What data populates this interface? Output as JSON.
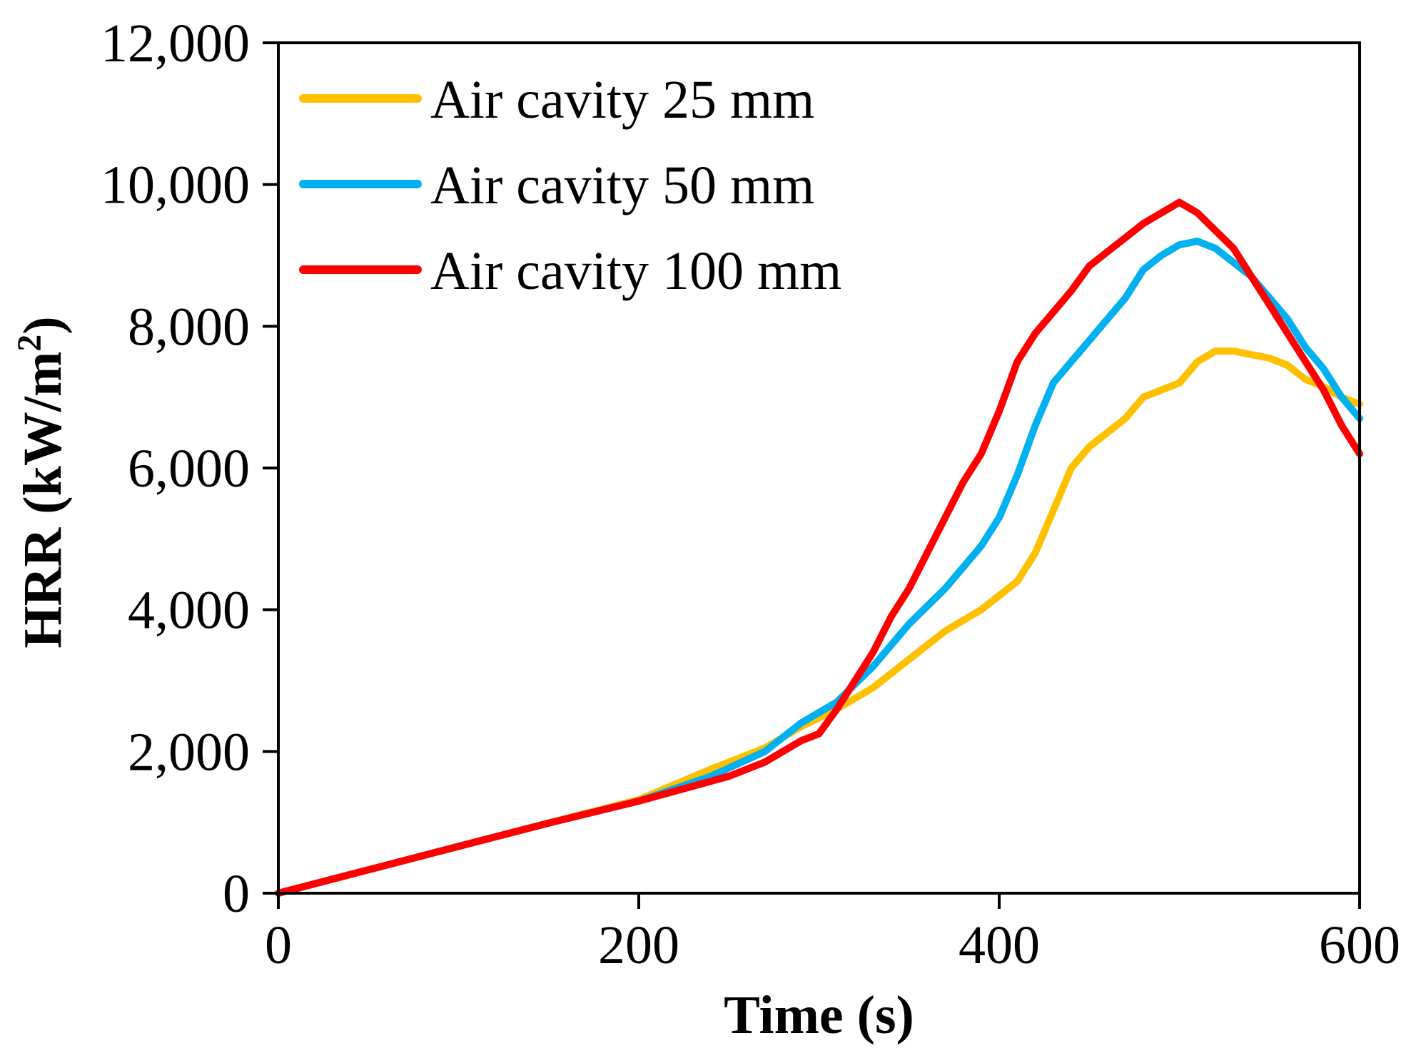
{
  "chart_data": {
    "type": "line",
    "title": "",
    "xlabel": "Time (s)",
    "ylabel": "HRR (kW/m",
    "ylabel_superscript": "2",
    "ylabel_close": ")",
    "xlim": [
      0,
      600
    ],
    "ylim": [
      0,
      12000
    ],
    "x_ticks": [
      0,
      200,
      400,
      600
    ],
    "x_tick_labels": [
      "0",
      "200",
      "400",
      "600"
    ],
    "y_ticks": [
      0,
      2000,
      4000,
      6000,
      8000,
      10000,
      12000
    ],
    "y_tick_labels": [
      "0",
      "2,000",
      "4,000",
      "6,000",
      "8,000",
      "10,000",
      "12,000"
    ],
    "grid": false,
    "legend_position": "top-left",
    "series": [
      {
        "name": "Air cavity 25 mm",
        "color": "#FFC000",
        "x": [
          0,
          50,
          100,
          150,
          200,
          240,
          270,
          290,
          310,
          330,
          350,
          370,
          390,
          410,
          420,
          430,
          440,
          450,
          470,
          480,
          490,
          500,
          510,
          520,
          530,
          540,
          550,
          560,
          570,
          580,
          590,
          600
        ],
        "y": [
          0,
          330,
          660,
          990,
          1320,
          1750,
          2050,
          2350,
          2600,
          2900,
          3300,
          3700,
          4000,
          4400,
          4800,
          5400,
          6000,
          6300,
          6700,
          7000,
          7100,
          7200,
          7500,
          7650,
          7650,
          7600,
          7550,
          7450,
          7250,
          7150,
          7000,
          6900
        ]
      },
      {
        "name": "Air cavity 50 mm",
        "color": "#00B0F0",
        "x": [
          0,
          50,
          100,
          150,
          200,
          240,
          270,
          290,
          310,
          330,
          350,
          370,
          390,
          400,
          410,
          420,
          430,
          440,
          450,
          460,
          470,
          480,
          490,
          500,
          510,
          520,
          530,
          540,
          550,
          560,
          570,
          580,
          590,
          600
        ],
        "y": [
          0,
          330,
          660,
          990,
          1300,
          1650,
          2000,
          2400,
          2700,
          3200,
          3800,
          4300,
          4900,
          5300,
          5900,
          6600,
          7200,
          7500,
          7800,
          8100,
          8400,
          8800,
          9000,
          9150,
          9200,
          9100,
          8900,
          8700,
          8400,
          8100,
          7700,
          7400,
          7000,
          6700
        ]
      },
      {
        "name": "Air cavity 100 mm",
        "color": "#FF0000",
        "x": [
          0,
          50,
          100,
          150,
          200,
          250,
          270,
          280,
          290,
          300,
          310,
          320,
          330,
          340,
          350,
          360,
          370,
          380,
          390,
          400,
          410,
          420,
          430,
          440,
          450,
          460,
          470,
          480,
          490,
          500,
          510,
          520,
          530,
          540,
          550,
          560,
          570,
          580,
          590,
          600
        ],
        "y": [
          0,
          330,
          660,
          990,
          1300,
          1650,
          1850,
          2000,
          2150,
          2250,
          2600,
          3000,
          3400,
          3900,
          4300,
          4800,
          5300,
          5800,
          6200,
          6800,
          7500,
          7900,
          8200,
          8500,
          8850,
          9050,
          9250,
          9450,
          9600,
          9750,
          9600,
          9350,
          9100,
          8700,
          8300,
          7900,
          7500,
          7100,
          6600,
          6200
        ]
      }
    ]
  }
}
